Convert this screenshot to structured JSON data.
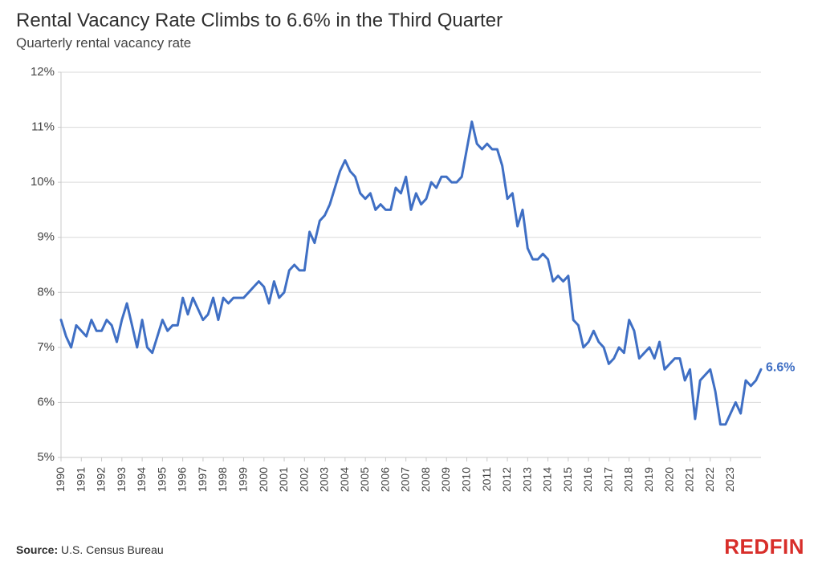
{
  "title": "Rental Vacancy Rate Climbs to 6.6% in the Third Quarter",
  "subtitle": "Quarterly rental vacancy rate",
  "source_label": "Source:",
  "source_value": "U.S. Census Bureau",
  "brand": "REDFIN",
  "chart": {
    "type": "line",
    "background_color": "#ffffff",
    "grid_color": "#d9d9d9",
    "axis_color": "#c9c9c9",
    "line_color": "#3f6fc4",
    "line_width": 3,
    "ylim": [
      5,
      12
    ],
    "ytick_step": 1,
    "ytick_suffix": "%",
    "xlim": [
      1990,
      2024
    ],
    "x_start_year": 1990,
    "x_end_year": 2023,
    "xtick_labels": [
      "1990",
      "1991",
      "1992",
      "1993",
      "1994",
      "1995",
      "1996",
      "1997",
      "1998",
      "1999",
      "2000",
      "2001",
      "2002",
      "2003",
      "2004",
      "2005",
      "2006",
      "2007",
      "2008",
      "2009",
      "2010",
      "2011",
      "2012",
      "2013",
      "2014",
      "2015",
      "2016",
      "2017",
      "2018",
      "2019",
      "2020",
      "2021",
      "2022",
      "2023"
    ],
    "tick_fontsize": 15,
    "xtick_fontsize": 14,
    "title_fontsize": 24,
    "subtitle_fontsize": 17,
    "end_label": "6.6%",
    "end_label_color": "#3f6fc4",
    "values": [
      7.5,
      7.2,
      7.0,
      7.4,
      7.3,
      7.2,
      7.5,
      7.3,
      7.3,
      7.5,
      7.4,
      7.1,
      7.5,
      7.8,
      7.4,
      7.0,
      7.5,
      7.0,
      6.9,
      7.2,
      7.5,
      7.3,
      7.4,
      7.4,
      7.9,
      7.6,
      7.9,
      7.7,
      7.5,
      7.6,
      7.9,
      7.5,
      7.9,
      7.8,
      7.9,
      7.9,
      7.9,
      8.0,
      8.1,
      8.2,
      8.1,
      7.8,
      8.2,
      7.9,
      8.0,
      8.4,
      8.5,
      8.4,
      8.4,
      9.1,
      8.9,
      9.3,
      9.4,
      9.6,
      9.9,
      10.2,
      10.4,
      10.2,
      10.1,
      9.8,
      9.7,
      9.8,
      9.5,
      9.6,
      9.5,
      9.5,
      9.9,
      9.8,
      10.1,
      9.5,
      9.8,
      9.6,
      9.7,
      10.0,
      9.9,
      10.1,
      10.1,
      10.0,
      10.0,
      10.1,
      10.6,
      11.1,
      10.7,
      10.6,
      10.7,
      10.6,
      10.6,
      10.3,
      9.7,
      9.8,
      9.2,
      9.5,
      8.8,
      8.6,
      8.6,
      8.7,
      8.6,
      8.2,
      8.3,
      8.2,
      8.3,
      7.5,
      7.4,
      7.0,
      7.1,
      7.3,
      7.1,
      7.0,
      6.7,
      6.8,
      7.0,
      6.9,
      7.5,
      7.3,
      6.8,
      6.9,
      7.0,
      6.8,
      7.1,
      6.6,
      6.7,
      6.8,
      6.8,
      6.4,
      6.6,
      5.7,
      6.4,
      6.5,
      6.6,
      6.2,
      5.6,
      5.6,
      5.8,
      6.0,
      5.8,
      6.4,
      6.3,
      6.4,
      6.6
    ]
  }
}
